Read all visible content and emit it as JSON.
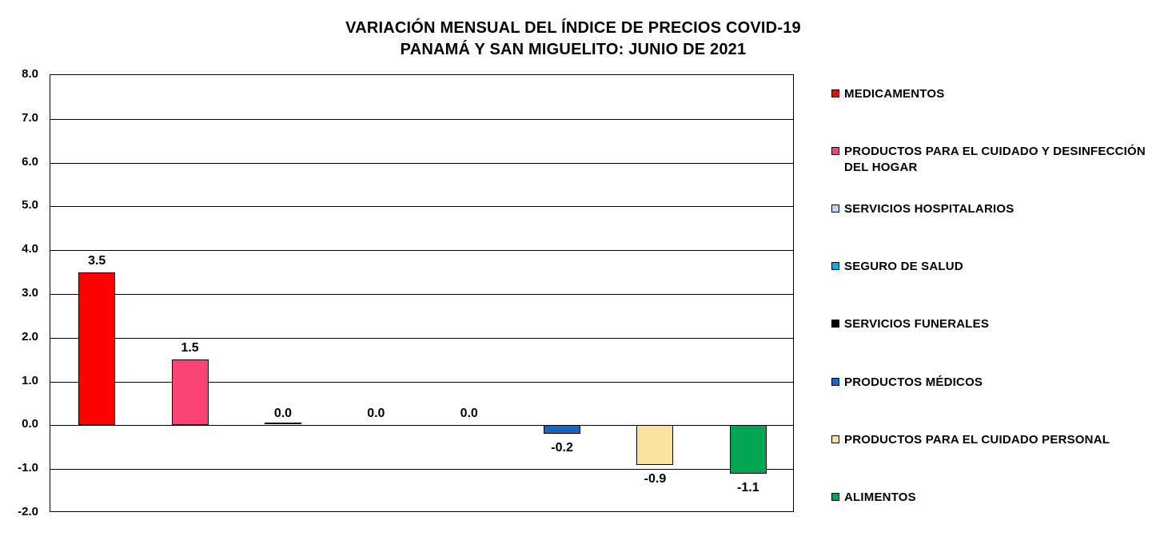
{
  "chart_data": {
    "type": "bar",
    "title": "VARIACIÓN MENSUAL DEL ÍNDICE DE PRECIOS COVID-19",
    "subtitle": "PANAMÁ Y SAN MIGUELITO: JUNIO DE 2021",
    "categories": [
      "MEDICAMENTOS",
      "PRODUCTOS PARA EL CUIDADO Y DESINFECCIÓN DEL HOGAR",
      "SERVICIOS HOSPITALARIOS",
      "SEGURO DE SALUD",
      "SERVICIOS FUNERALES",
      "PRODUCTOS MÉDICOS",
      "PRODUCTOS PARA EL CUIDADO PERSONAL",
      "ALIMENTOS"
    ],
    "values": [
      3.5,
      1.5,
      0.0,
      0.0,
      0.0,
      -0.2,
      -0.9,
      -1.1
    ],
    "value_labels": [
      "3.5",
      "1.5",
      "0.0",
      "0.0",
      "0.0",
      "-0.2",
      "-0.9",
      "-1.1"
    ],
    "colors": [
      "#FF0000",
      "#FB4374",
      "#BDD7EE",
      "#00AEEF",
      "#000000",
      "#1668BE",
      "#FBE19E",
      "#00A651"
    ],
    "hairline_zero_bar_index": 2,
    "xlabel": "",
    "ylabel": "",
    "ylim": [
      -2.0,
      8.0
    ],
    "ytick_step": 1.0,
    "ytick_labels": [
      "8.0",
      "7.0",
      "6.0",
      "5.0",
      "4.0",
      "3.0",
      "2.0",
      "1.0",
      "0.0",
      "-1.0",
      "-2.0"
    ],
    "grid": true,
    "legend_position": "right",
    "text_color": "#000000",
    "background_color": "#FFFFFF"
  }
}
